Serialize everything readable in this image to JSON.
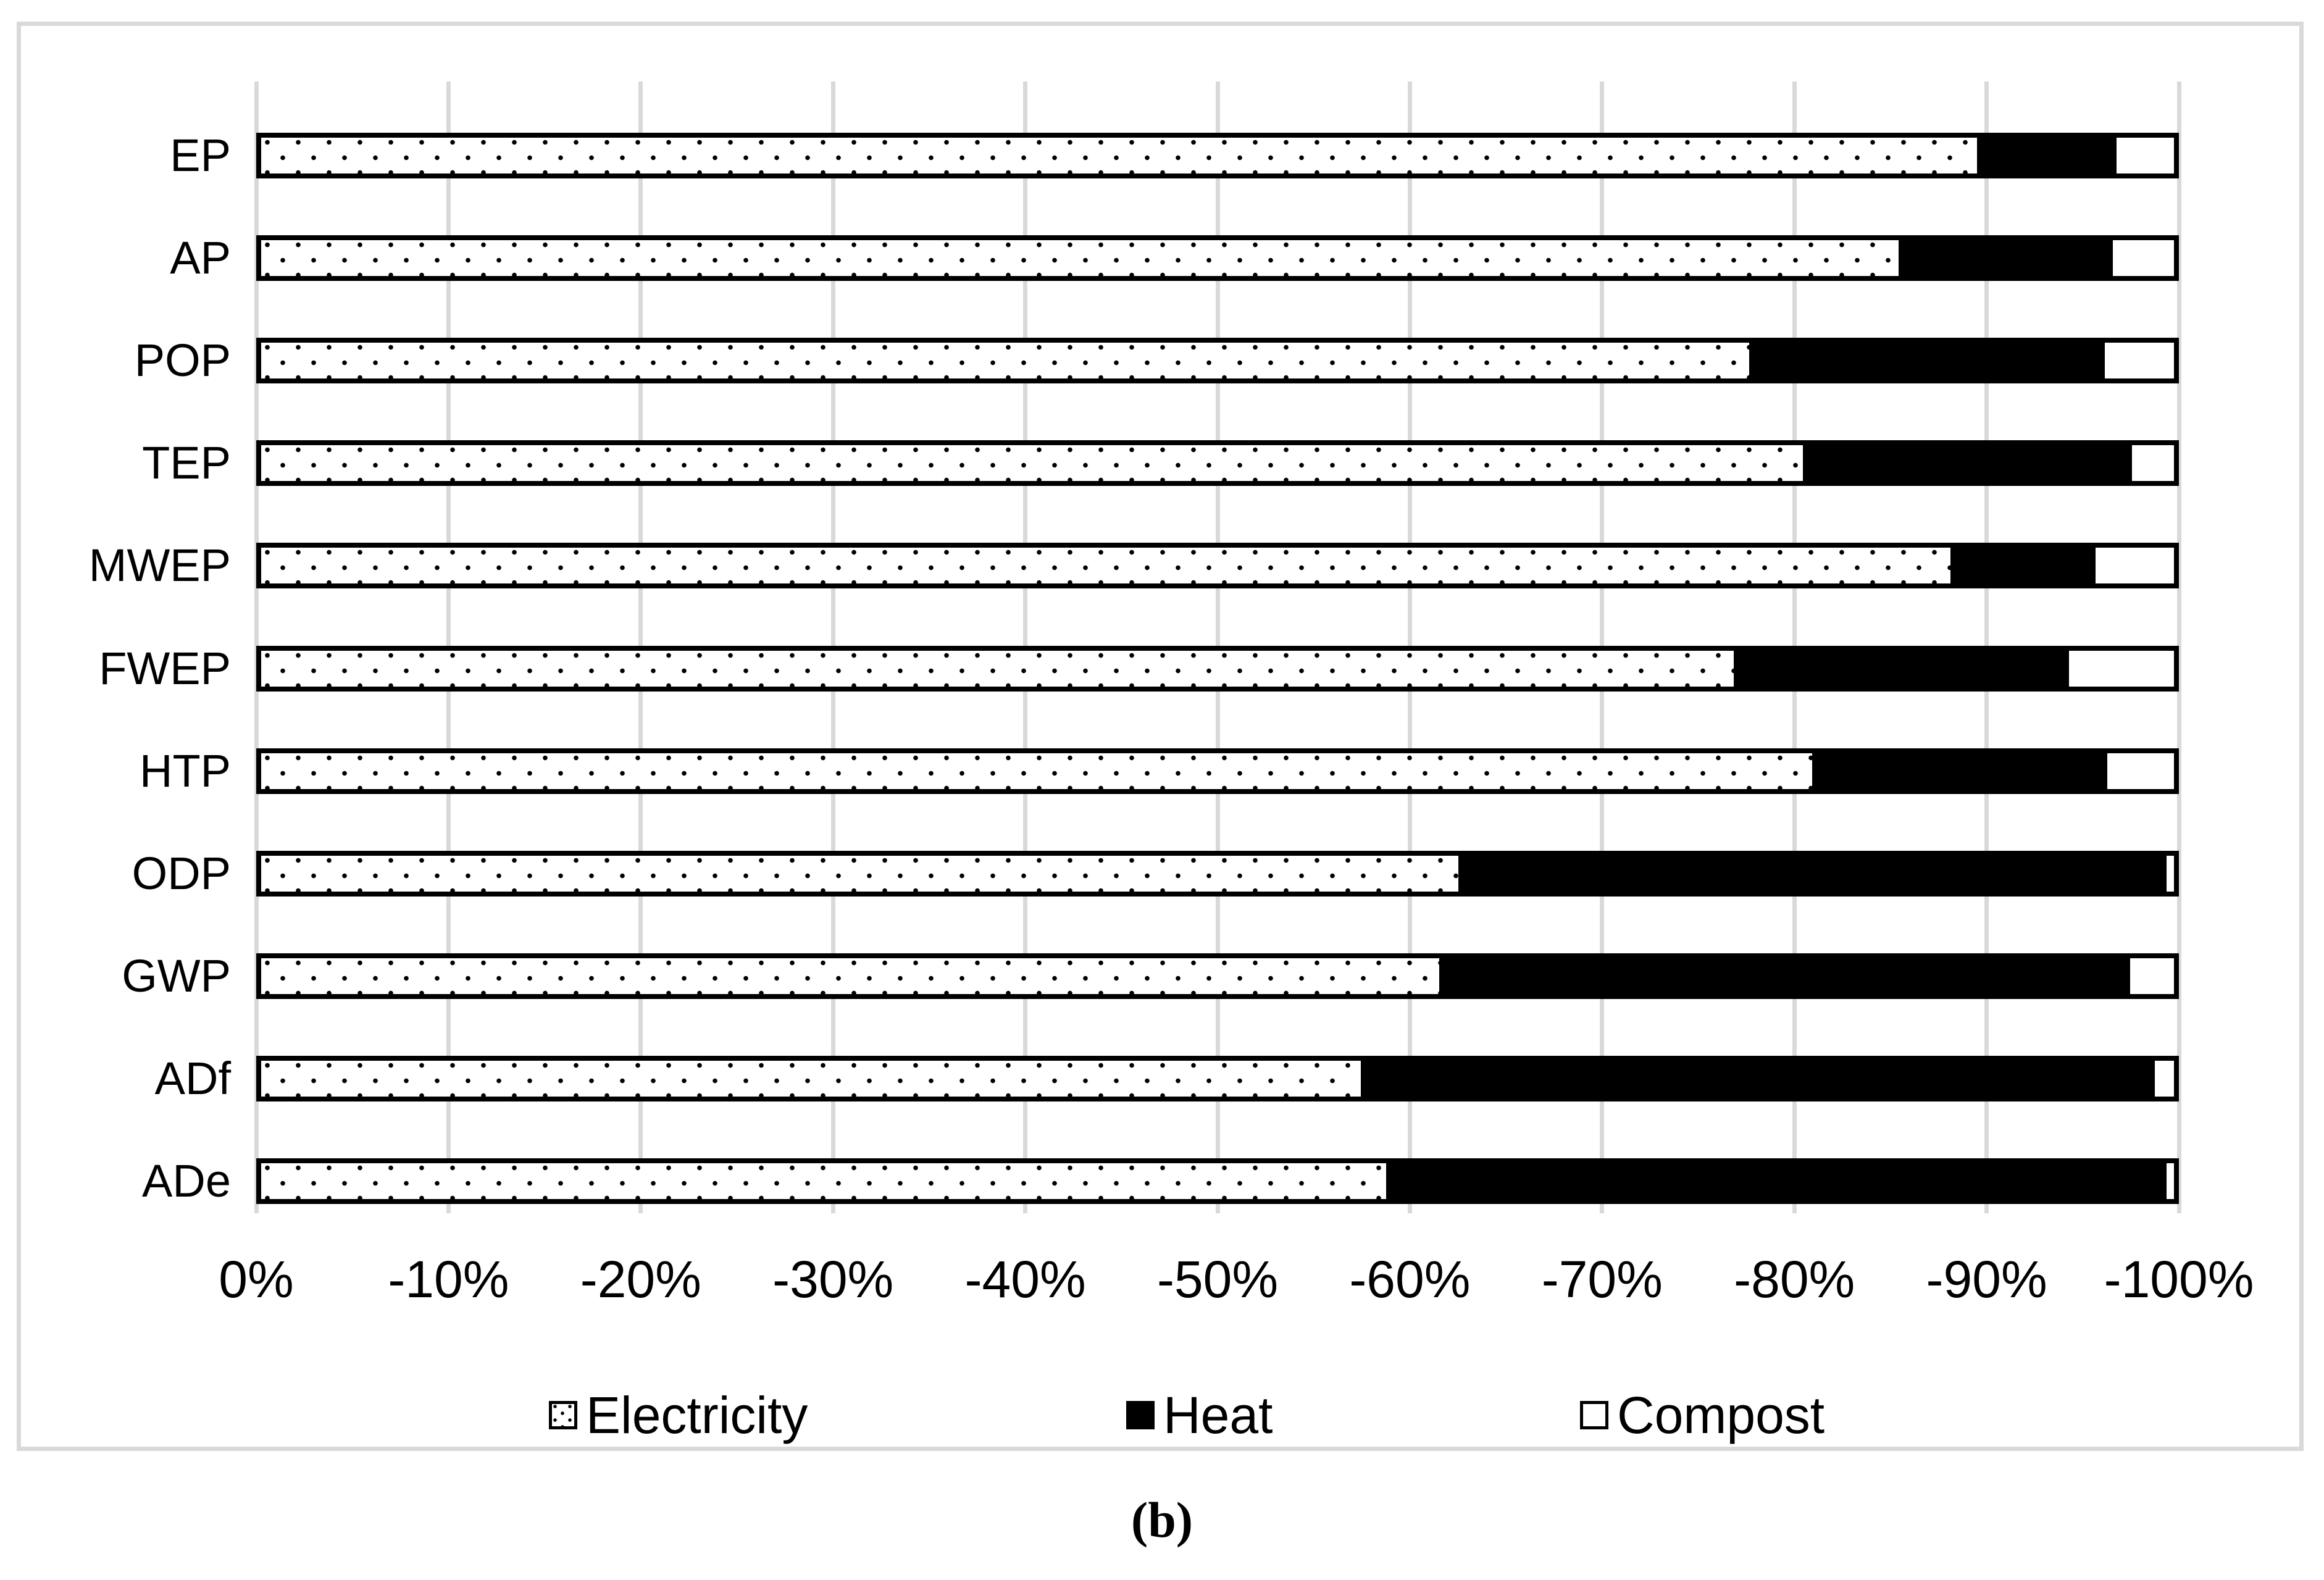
{
  "figure": {
    "caption": "(b)"
  },
  "chart_data": {
    "type": "bar",
    "orientation": "horizontal",
    "stacked": true,
    "title": "",
    "xlabel": "",
    "ylabel": "",
    "grid": true,
    "axis_range_percent": [
      0,
      -100
    ],
    "categories": [
      "EP",
      "AP",
      "POP",
      "TEP",
      "MWEP",
      "FWEP",
      "HTP",
      "ODP",
      "GWP",
      "ADf",
      "ADe"
    ],
    "series": [
      {
        "name": "Electricity",
        "pattern": "white-with-black-dots",
        "values": [
          -89.7,
          -85.6,
          -77.8,
          -80.6,
          -88.3,
          -77.0,
          -81.1,
          -62.6,
          -61.6,
          -57.5,
          -58.8
        ]
      },
      {
        "name": "Heat",
        "pattern": "solid-black",
        "values": [
          -7.3,
          -11.2,
          -18.6,
          -17.2,
          -7.6,
          -17.5,
          -15.4,
          -37.0,
          -36.1,
          -41.5,
          -40.8
        ]
      },
      {
        "name": "Compost",
        "pattern": "white",
        "values": [
          -3.0,
          -3.2,
          -3.6,
          -2.2,
          -4.1,
          -5.5,
          -3.5,
          -0.4,
          -2.3,
          -1.0,
          -0.4
        ]
      }
    ],
    "x_axis": {
      "tick_labels": [
        "0%",
        "-10%",
        "-20%",
        "-30%",
        "-40%",
        "-50%",
        "-60%",
        "-70%",
        "-80%",
        "-90%",
        "-100%"
      ]
    },
    "legend": {
      "position": "bottom",
      "entries": [
        "Electricity",
        "Heat",
        "Compost"
      ]
    },
    "colors": {
      "bar_border": "#000000",
      "heat_fill": "#000000",
      "compost_fill": "#ffffff",
      "electricity_fill": "#ffffff",
      "gridline": "#d9d9d9",
      "frame_border": "#d9d9d9",
      "background": "#ffffff"
    }
  }
}
